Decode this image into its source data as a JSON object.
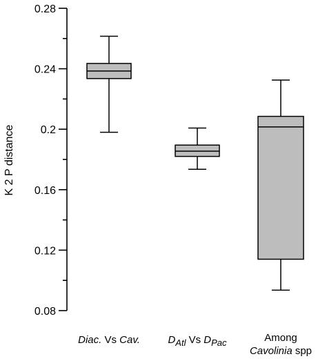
{
  "chart_data": {
    "type": "box",
    "ylabel": "K 2 P distance",
    "ylim": [
      0.08,
      0.28
    ],
    "yticks": [
      "0.08",
      "0.12",
      "0.16",
      "0.2",
      "0.24",
      "0.28"
    ],
    "grid": false,
    "box_fill": "#bdbdbd",
    "categories": [
      {
        "label_parts": [
          {
            "t": "Diac.",
            "i": true
          },
          {
            "t": " Vs ",
            "i": false
          },
          {
            "t": "Cav.",
            "i": true
          }
        ]
      },
      {
        "label_parts": [
          {
            "t": "D",
            "i": true
          },
          {
            "t": "Atl",
            "i": true,
            "sub": true
          },
          {
            "t": " Vs ",
            "i": false
          },
          {
            "t": "D",
            "i": true
          },
          {
            "t": "Pac",
            "i": true,
            "sub": true
          }
        ]
      },
      {
        "label_lines": [
          [
            {
              "t": "Among",
              "i": false
            }
          ],
          [
            {
              "t": "Cavolinia",
              "i": true
            },
            {
              "t": " spp",
              "i": false
            }
          ]
        ]
      }
    ],
    "boxes": [
      {
        "min": 0.198,
        "q1": 0.2335,
        "median": 0.2385,
        "q3": 0.2435,
        "max": 0.2615
      },
      {
        "min": 0.1735,
        "q1": 0.182,
        "median": 0.1855,
        "q3": 0.1895,
        "max": 0.2008
      },
      {
        "min": 0.0935,
        "q1": 0.114,
        "median": 0.2015,
        "q3": 0.2085,
        "max": 0.2325
      }
    ]
  }
}
